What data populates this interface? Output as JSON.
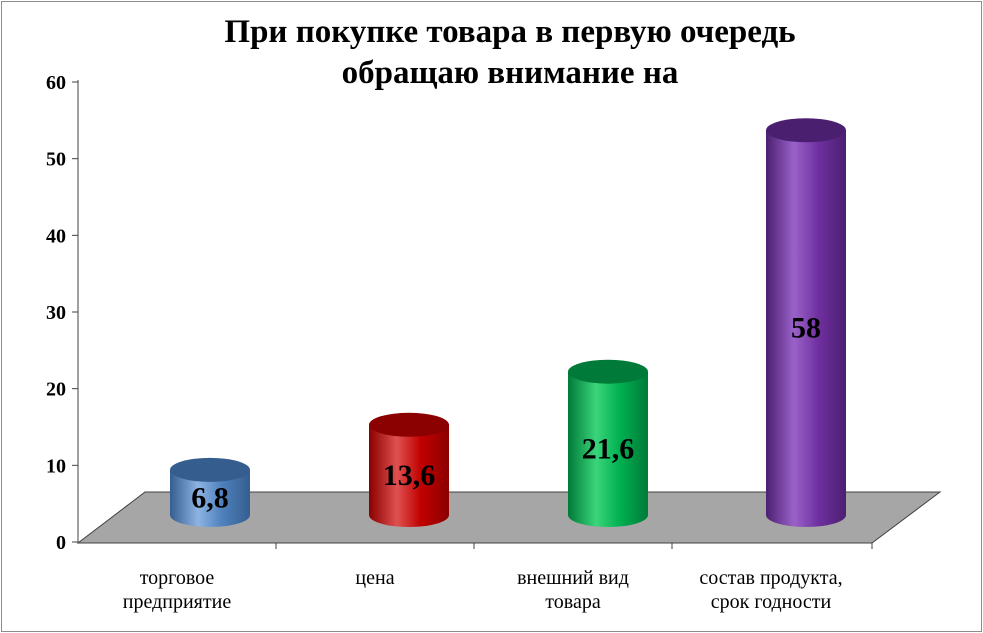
{
  "chart_data": {
    "type": "bar",
    "title_lines": [
      "При покупке товара в первую очередь",
      "обращаю внимание на"
    ],
    "categories": [
      [
        "торговое",
        "предприятие"
      ],
      [
        "цена"
      ],
      [
        "внешний вид",
        "товара"
      ],
      [
        "состав продукта,",
        "срок годности"
      ]
    ],
    "values": [
      6.8,
      13.6,
      21.6,
      58
    ],
    "value_labels": [
      "6,8",
      "13,6",
      "21,6",
      "58"
    ],
    "colors": [
      "#4f81bd",
      "#c00000",
      "#00b050",
      "#7030a0"
    ],
    "colors_dark": [
      "#355e8f",
      "#8b0000",
      "#007a38",
      "#4b1f70"
    ],
    "colors_light": [
      "#8db3e2",
      "#e05050",
      "#3ad57a",
      "#9a62c9"
    ],
    "ylim": [
      0,
      60
    ],
    "yticks": [
      0,
      10,
      20,
      30,
      40,
      50,
      60
    ],
    "grid": false,
    "legend": "none",
    "style": "3d-cylinder"
  }
}
